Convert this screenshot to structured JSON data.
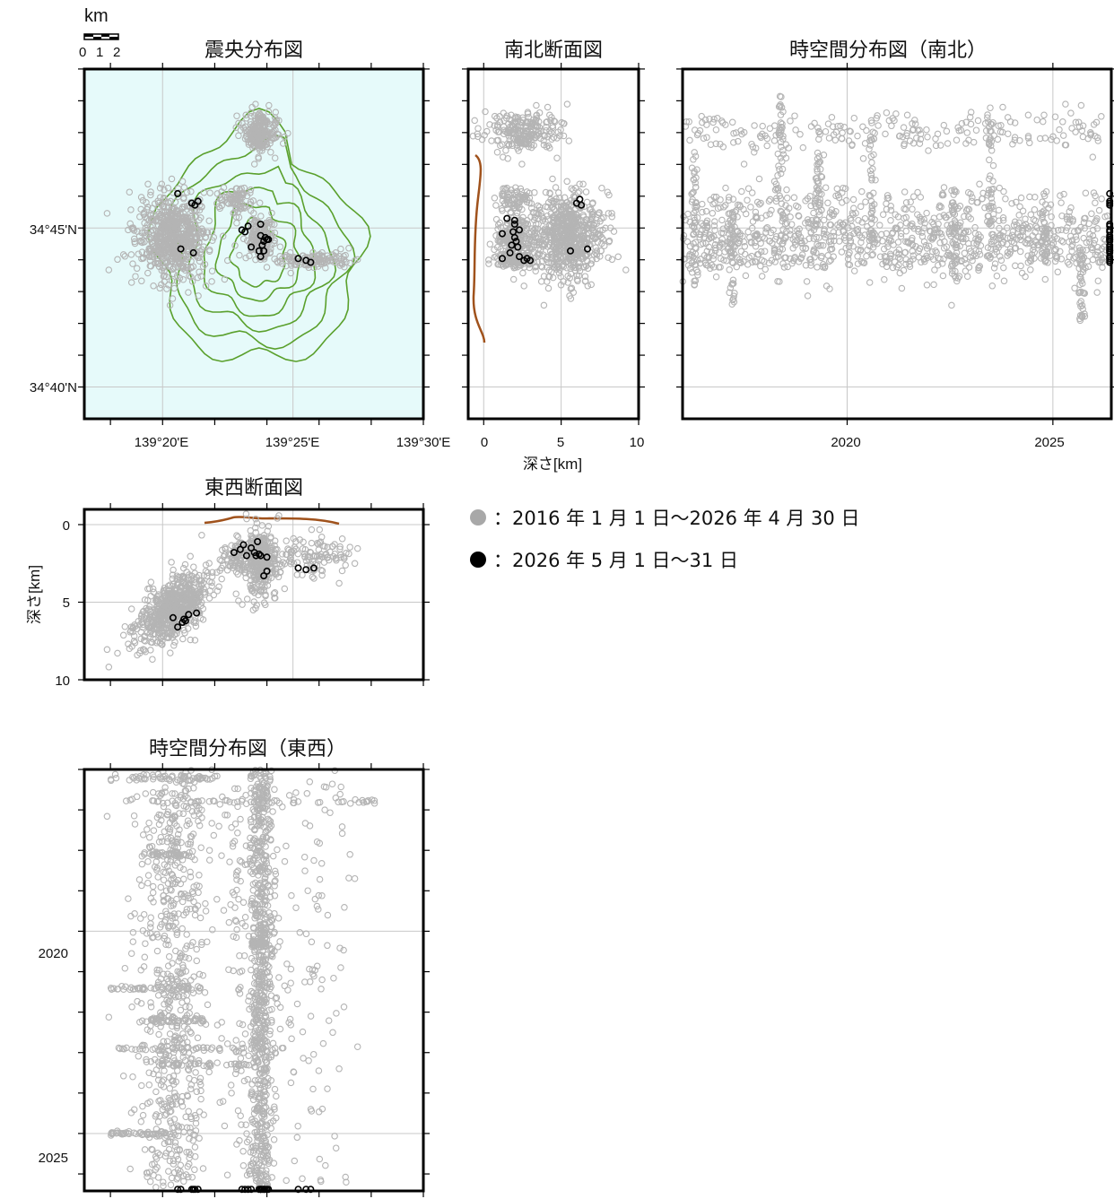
{
  "scale_bar": {
    "unit": "km",
    "labels": [
      "0",
      "1",
      "2"
    ]
  },
  "legend": {
    "gray": "：2016 年 1 月 1 日〜2026 年 4 月 30 日",
    "black": "：2026 年 5 月 1 日〜31 日",
    "gray_color": "#a8a8a8",
    "black_color": "#000000"
  },
  "colors": {
    "map_sea": "#e6fafa",
    "contour": "#5aa02c",
    "topography": "#a0521c",
    "gray_eq": "#b4b4b4",
    "black_eq": "#000000"
  },
  "chart_data": [
    {
      "id": "epicenter",
      "type": "scatter",
      "title": "震央分布図",
      "xlim": [
        139.2833,
        139.5
      ],
      "ylim": [
        34.65,
        34.8333
      ],
      "x_ticks": [
        "139°20'E",
        "139°25'E",
        "139°30'E"
      ],
      "y_ticks": [
        "34°40'N",
        "34°45'N"
      ],
      "clusters": [
        {
          "x": 139.34,
          "y": 34.745,
          "rx": 0.022,
          "ry": 0.02,
          "n": 650
        },
        {
          "x": 139.395,
          "y": 34.8,
          "rx": 0.01,
          "ry": 0.01,
          "n": 220
        },
        {
          "x": 139.397,
          "y": 34.744,
          "rx": 0.008,
          "ry": 0.01,
          "n": 170
        },
        {
          "x": 139.428,
          "y": 34.733,
          "rx": 0.022,
          "ry": 0.004,
          "n": 110
        },
        {
          "x": 139.38,
          "y": 34.765,
          "rx": 0.01,
          "ry": 0.008,
          "n": 80
        }
      ],
      "black_points": [
        [
          139.343,
          34.768
        ],
        [
          139.352,
          34.763
        ],
        [
          139.356,
          34.764
        ],
        [
          139.354,
          34.762
        ],
        [
          139.384,
          34.749
        ],
        [
          139.388,
          34.751
        ],
        [
          139.386,
          34.748
        ],
        [
          139.396,
          34.746
        ],
        [
          139.398,
          34.743
        ],
        [
          139.399,
          34.745
        ],
        [
          139.397,
          34.741
        ],
        [
          139.4,
          34.744
        ],
        [
          139.396,
          34.752
        ],
        [
          139.395,
          34.738
        ],
        [
          139.398,
          34.738
        ],
        [
          139.39,
          34.74
        ],
        [
          139.396,
          34.735
        ],
        [
          139.345,
          34.739
        ],
        [
          139.353,
          34.737
        ],
        [
          139.42,
          34.734
        ],
        [
          139.425,
          34.733
        ],
        [
          139.428,
          34.732
        ],
        [
          139.401,
          34.744
        ]
      ]
    },
    {
      "id": "ns_section",
      "type": "scatter",
      "title": "南北断面図",
      "xlabel": "深さ[km]",
      "xlim": [
        -1,
        10
      ],
      "x_ticks": [
        "0",
        "5",
        "10"
      ],
      "ylim": [
        34.65,
        34.8333
      ],
      "clusters": [
        {
          "x": 2.5,
          "y": 34.8,
          "rx": 2.0,
          "ry": 0.01,
          "n": 220
        },
        {
          "x": 4.5,
          "y": 34.742,
          "rx": 2.8,
          "ry": 0.018,
          "n": 700
        }
      ],
      "black_points": [
        [
          6.2,
          34.765
        ],
        [
          6.0,
          34.763
        ],
        [
          6.3,
          34.762
        ],
        [
          1.9,
          34.748
        ],
        [
          2.0,
          34.745
        ],
        [
          2.1,
          34.743
        ],
        [
          1.8,
          34.741
        ],
        [
          2.2,
          34.74
        ],
        [
          2.3,
          34.749
        ],
        [
          1.5,
          34.755
        ],
        [
          2.0,
          34.752
        ],
        [
          1.2,
          34.747
        ],
        [
          1.7,
          34.737
        ],
        [
          2.3,
          34.735
        ],
        [
          1.2,
          34.734
        ],
        [
          2.6,
          34.733
        ],
        [
          3.0,
          34.733
        ],
        [
          2.8,
          34.734
        ],
        [
          5.6,
          34.738
        ],
        [
          6.7,
          34.739
        ],
        [
          2.0,
          34.754
        ]
      ]
    },
    {
      "id": "time_ns",
      "type": "scatter",
      "title": "時空間分布図（南北）",
      "xlim": [
        2016.0,
        2026.42
      ],
      "x_ticks": [
        "2020",
        "2025"
      ],
      "ylim": [
        34.65,
        34.8333
      ]
    },
    {
      "id": "ew_section",
      "type": "scatter",
      "title": "東西断面図",
      "ylabel": "深さ[km]",
      "xlim": [
        139.2833,
        139.5
      ],
      "ylim": [
        0,
        10
      ],
      "y_ticks": [
        "0",
        "5",
        "10"
      ],
      "black_points": [
        [
          139.34,
          6.0
        ],
        [
          139.346,
          6.3
        ],
        [
          139.347,
          6.1
        ],
        [
          139.35,
          5.8
        ],
        [
          139.355,
          5.7
        ],
        [
          139.343,
          6.6
        ],
        [
          139.348,
          6.2
        ],
        [
          139.379,
          1.8
        ],
        [
          139.383,
          1.6
        ],
        [
          139.385,
          1.3
        ],
        [
          139.39,
          1.5
        ],
        [
          139.392,
          1.8
        ],
        [
          139.393,
          2.0
        ],
        [
          139.395,
          1.9
        ],
        [
          139.396,
          2.0
        ],
        [
          139.394,
          1.1
        ],
        [
          139.387,
          2.0
        ],
        [
          139.42,
          2.8
        ],
        [
          139.425,
          2.9
        ],
        [
          139.43,
          2.8
        ],
        [
          139.4,
          2.1
        ],
        [
          139.398,
          3.3
        ],
        [
          139.4,
          3.0
        ]
      ]
    },
    {
      "id": "time_ew",
      "type": "scatter",
      "title": "時空間分布図（東西）",
      "xlim": [
        139.2833,
        139.5
      ],
      "ylim": [
        2016.0,
        2026.42
      ],
      "y_ticks": [
        "2020",
        "2025"
      ]
    }
  ]
}
